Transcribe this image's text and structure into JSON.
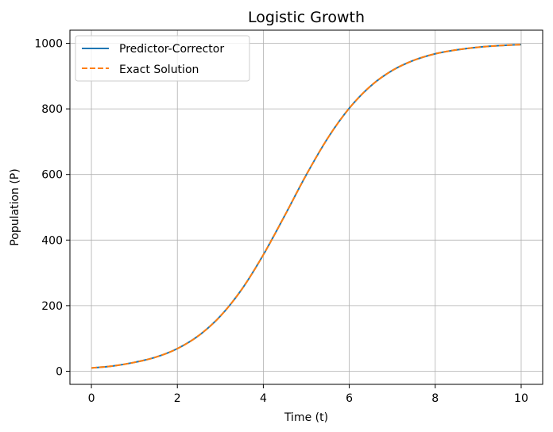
{
  "chart_data": {
    "type": "line",
    "title": "Logistic Growth",
    "xlabel": "Time (t)",
    "ylabel": "Population (P)",
    "xlim": [
      -0.5,
      10.5
    ],
    "ylim": [
      -40,
      1040
    ],
    "xticks": [
      0,
      2,
      4,
      6,
      8,
      10
    ],
    "xtick_labels": [
      "0",
      "2",
      "4",
      "6",
      "8",
      "10"
    ],
    "yticks": [
      0,
      200,
      400,
      600,
      800,
      1000
    ],
    "ytick_labels": [
      "0",
      "200",
      "400",
      "600",
      "800",
      "1000"
    ],
    "grid": true,
    "legend_position": "top-left",
    "x": [
      0,
      0.5,
      1,
      1.5,
      2,
      2.5,
      3,
      3.5,
      4,
      4.5,
      5,
      5.5,
      6,
      6.5,
      7,
      7.5,
      8,
      8.5,
      9,
      9.5,
      10
    ],
    "series": [
      {
        "name": "Predictor-Corrector",
        "color": "#1f77b4",
        "style": "solid",
        "values": [
          10,
          16,
          27,
          43,
          69,
          109,
          168,
          250,
          355,
          475,
          599,
          711,
          802,
          870,
          917,
          948,
          968,
          980,
          988,
          993,
          996
        ]
      },
      {
        "name": "Exact Solution",
        "color": "#ff7f0e",
        "style": "dashed",
        "values": [
          10,
          16,
          27,
          43,
          69,
          109,
          168,
          250,
          355,
          475,
          599,
          711,
          802,
          870,
          917,
          948,
          968,
          980,
          988,
          993,
          996
        ]
      }
    ]
  }
}
